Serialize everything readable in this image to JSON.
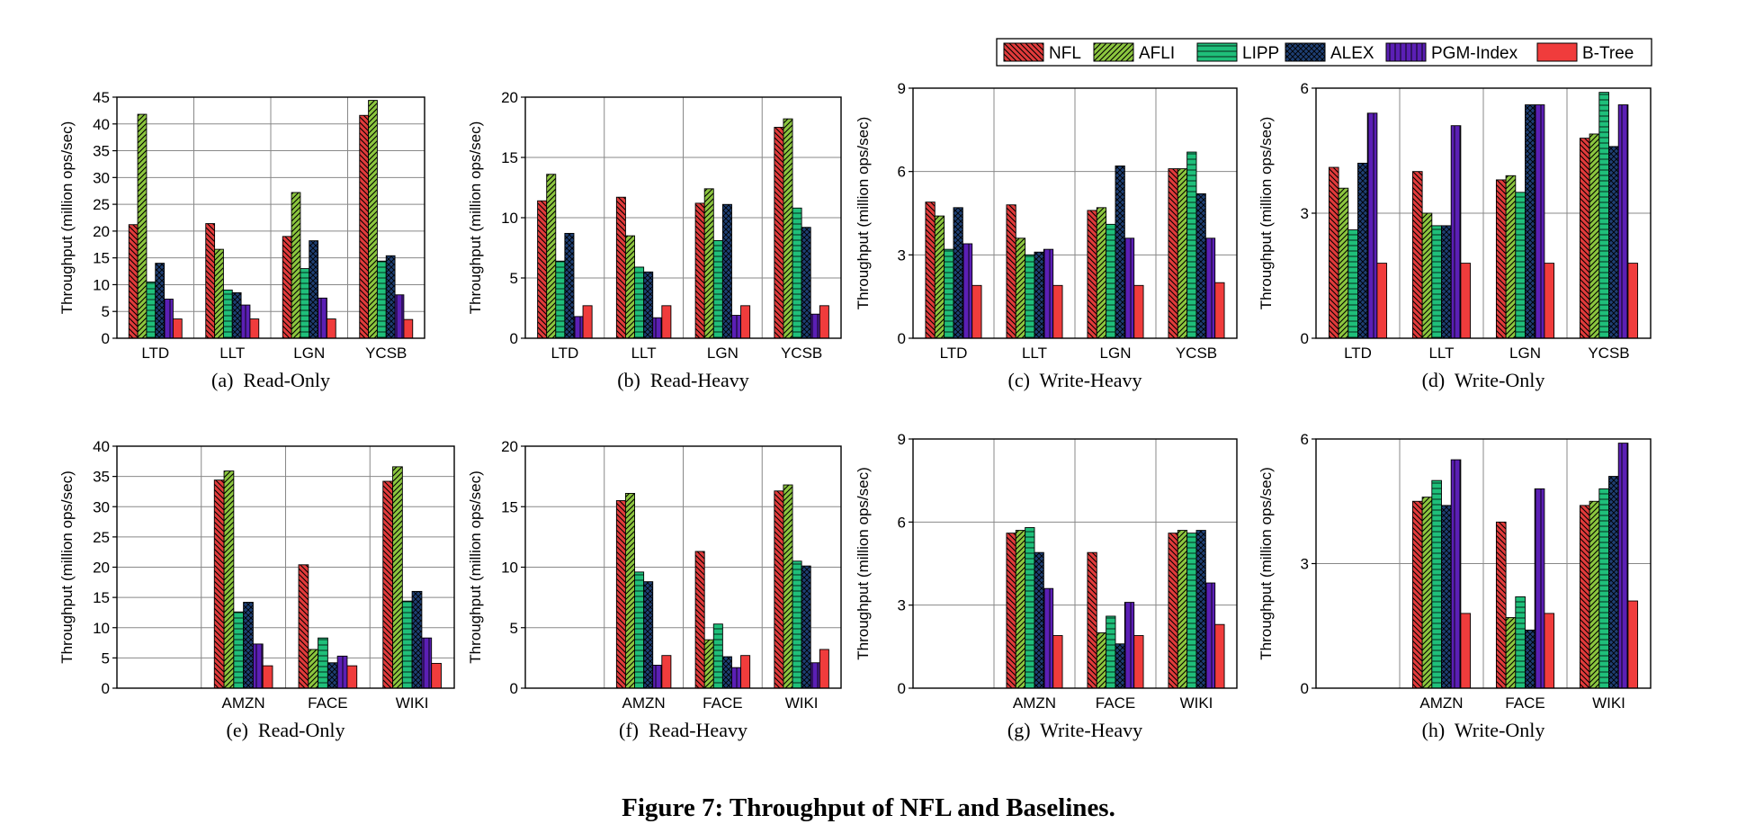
{
  "figure_caption": "Figure 7: Throughput of NFL and Baselines.",
  "legend": [
    {
      "name": "NFL",
      "color": "#e23b3b",
      "pattern": "diag-back"
    },
    {
      "name": "AFLI",
      "color": "#8cc63f",
      "pattern": "diag-fwd"
    },
    {
      "name": "LIPP",
      "color": "#1fbf7a",
      "pattern": "hlines"
    },
    {
      "name": "ALEX",
      "color": "#1e3f73",
      "pattern": "cross"
    },
    {
      "name": "PGM-Index",
      "color": "#5b1fb5",
      "pattern": "vlines"
    },
    {
      "name": "B-Tree",
      "color": "#f03c3c",
      "pattern": "solid"
    }
  ],
  "chart_data": [
    {
      "type": "bar",
      "caption": "(a)  Read-Only",
      "ylabel": "Throughput (million ops/sec)",
      "ylim": [
        0,
        45
      ],
      "yticks": [
        "0",
        "5",
        "10",
        "15",
        "20",
        "25",
        "30",
        "35",
        "40",
        "45"
      ],
      "categories": [
        "LTD",
        "LLT",
        "LGN",
        "YCSB"
      ],
      "grid": true,
      "series": [
        {
          "name": "NFL",
          "values": [
            21.2,
            21.4,
            19.0,
            41.6
          ]
        },
        {
          "name": "AFLI",
          "values": [
            41.8,
            16.6,
            27.2,
            44.4
          ]
        },
        {
          "name": "LIPP",
          "values": [
            10.5,
            9.0,
            13.0,
            14.4
          ]
        },
        {
          "name": "ALEX",
          "values": [
            14.0,
            8.5,
            18.2,
            15.4
          ]
        },
        {
          "name": "PGM-Index",
          "values": [
            7.3,
            6.2,
            7.5,
            8.1
          ]
        },
        {
          "name": "B-Tree",
          "values": [
            3.6,
            3.6,
            3.6,
            3.5
          ]
        }
      ]
    },
    {
      "type": "bar",
      "caption": "(b)  Read-Heavy",
      "ylabel": "Throughput (million ops/sec)",
      "ylim": [
        0,
        20
      ],
      "yticks": [
        "0",
        "5",
        "10",
        "15",
        "20"
      ],
      "categories": [
        "LTD",
        "LLT",
        "LGN",
        "YCSB"
      ],
      "grid": true,
      "series": [
        {
          "name": "NFL",
          "values": [
            11.4,
            11.7,
            11.2,
            17.5
          ]
        },
        {
          "name": "AFLI",
          "values": [
            13.6,
            8.5,
            12.4,
            18.2
          ]
        },
        {
          "name": "LIPP",
          "values": [
            6.4,
            5.9,
            8.1,
            10.8
          ]
        },
        {
          "name": "ALEX",
          "values": [
            8.7,
            5.5,
            11.1,
            9.2
          ]
        },
        {
          "name": "PGM-Index",
          "values": [
            1.8,
            1.7,
            1.9,
            2.0
          ]
        },
        {
          "name": "B-Tree",
          "values": [
            2.7,
            2.7,
            2.7,
            2.7
          ]
        }
      ]
    },
    {
      "type": "bar",
      "caption": "(c)  Write-Heavy",
      "ylabel": "Throughput (million ops/sec)",
      "ylim": [
        0,
        9
      ],
      "yticks": [
        "0",
        "3",
        "6",
        "9"
      ],
      "categories": [
        "LTD",
        "LLT",
        "LGN",
        "YCSB"
      ],
      "grid": true,
      "series": [
        {
          "name": "NFL",
          "values": [
            4.9,
            4.8,
            4.6,
            6.1
          ]
        },
        {
          "name": "AFLI",
          "values": [
            4.4,
            3.6,
            4.7,
            6.1
          ]
        },
        {
          "name": "LIPP",
          "values": [
            3.2,
            3.0,
            4.1,
            6.7
          ]
        },
        {
          "name": "ALEX",
          "values": [
            4.7,
            3.1,
            6.2,
            5.2
          ]
        },
        {
          "name": "PGM-Index",
          "values": [
            3.4,
            3.2,
            3.6,
            3.6
          ]
        },
        {
          "name": "B-Tree",
          "values": [
            1.9,
            1.9,
            1.9,
            2.0
          ]
        }
      ]
    },
    {
      "type": "bar",
      "caption": "(d)  Write-Only",
      "ylabel": "Throughput (million ops/sec)",
      "ylim": [
        0,
        6
      ],
      "yticks": [
        "0",
        "3",
        "6"
      ],
      "categories": [
        "LTD",
        "LLT",
        "LGN",
        "YCSB"
      ],
      "grid": true,
      "series": [
        {
          "name": "NFL",
          "values": [
            4.1,
            4.0,
            3.8,
            4.8
          ]
        },
        {
          "name": "AFLI",
          "values": [
            3.6,
            3.0,
            3.9,
            4.9
          ]
        },
        {
          "name": "LIPP",
          "values": [
            2.6,
            2.7,
            3.5,
            5.9
          ]
        },
        {
          "name": "ALEX",
          "values": [
            4.2,
            2.7,
            5.6,
            4.6
          ]
        },
        {
          "name": "PGM-Index",
          "values": [
            5.4,
            5.1,
            5.6,
            5.6
          ]
        },
        {
          "name": "B-Tree",
          "values": [
            1.8,
            1.8,
            1.8,
            1.8
          ]
        }
      ]
    },
    {
      "type": "bar",
      "caption": "(e)  Read-Only",
      "ylabel": "Throughput (million ops/sec)",
      "ylim": [
        0,
        40
      ],
      "yticks": [
        "0",
        "5",
        "10",
        "15",
        "20",
        "25",
        "30",
        "35",
        "40"
      ],
      "categories": [
        "AMZN",
        "FACE",
        "WIKI"
      ],
      "grid": true,
      "series": [
        {
          "name": "NFL",
          "values": [
            34.4,
            20.4,
            34.2
          ]
        },
        {
          "name": "AFLI",
          "values": [
            35.9,
            6.4,
            36.6
          ]
        },
        {
          "name": "LIPP",
          "values": [
            12.6,
            8.3,
            14.4
          ]
        },
        {
          "name": "ALEX",
          "values": [
            14.2,
            4.2,
            16.0
          ]
        },
        {
          "name": "PGM-Index",
          "values": [
            7.3,
            5.3,
            8.3
          ]
        },
        {
          "name": "B-Tree",
          "values": [
            3.7,
            3.7,
            4.1
          ]
        }
      ]
    },
    {
      "type": "bar",
      "caption": "(f)  Read-Heavy",
      "ylabel": "Throughput (million ops/sec)",
      "ylim": [
        0,
        20
      ],
      "yticks": [
        "0",
        "5",
        "10",
        "15",
        "20"
      ],
      "categories": [
        "AMZN",
        "FACE",
        "WIKI"
      ],
      "grid": true,
      "series": [
        {
          "name": "NFL",
          "values": [
            15.5,
            11.3,
            16.3
          ]
        },
        {
          "name": "AFLI",
          "values": [
            16.1,
            4.0,
            16.8
          ]
        },
        {
          "name": "LIPP",
          "values": [
            9.6,
            5.3,
            10.5
          ]
        },
        {
          "name": "ALEX",
          "values": [
            8.8,
            2.6,
            10.1
          ]
        },
        {
          "name": "PGM-Index",
          "values": [
            1.9,
            1.7,
            2.1
          ]
        },
        {
          "name": "B-Tree",
          "values": [
            2.7,
            2.7,
            3.2
          ]
        }
      ]
    },
    {
      "type": "bar",
      "caption": "(g)  Write-Heavy",
      "ylabel": "Throughput (million ops/sec)",
      "ylim": [
        0,
        9
      ],
      "yticks": [
        "0",
        "3",
        "6",
        "9"
      ],
      "categories": [
        "AMZN",
        "FACE",
        "WIKI"
      ],
      "grid": true,
      "series": [
        {
          "name": "NFL",
          "values": [
            5.6,
            4.9,
            5.6
          ]
        },
        {
          "name": "AFLI",
          "values": [
            5.7,
            2.0,
            5.7
          ]
        },
        {
          "name": "LIPP",
          "values": [
            5.8,
            2.6,
            5.6
          ]
        },
        {
          "name": "ALEX",
          "values": [
            4.9,
            1.6,
            5.7
          ]
        },
        {
          "name": "PGM-Index",
          "values": [
            3.6,
            3.1,
            3.8
          ]
        },
        {
          "name": "B-Tree",
          "values": [
            1.9,
            1.9,
            2.3
          ]
        }
      ]
    },
    {
      "type": "bar",
      "caption": "(h)  Write-Only",
      "ylabel": "Throughput (million ops/sec)",
      "ylim": [
        0,
        6
      ],
      "yticks": [
        "0",
        "3",
        "6"
      ],
      "categories": [
        "AMZN",
        "FACE",
        "WIKI"
      ],
      "grid": true,
      "series": [
        {
          "name": "NFL",
          "values": [
            4.5,
            4.0,
            4.4
          ]
        },
        {
          "name": "AFLI",
          "values": [
            4.6,
            1.7,
            4.5
          ]
        },
        {
          "name": "LIPP",
          "values": [
            5.0,
            2.2,
            4.8
          ]
        },
        {
          "name": "ALEX",
          "values": [
            4.4,
            1.4,
            5.1
          ]
        },
        {
          "name": "PGM-Index",
          "values": [
            5.5,
            4.8,
            5.9
          ]
        },
        {
          "name": "B-Tree",
          "values": [
            1.8,
            1.8,
            2.1
          ]
        }
      ]
    }
  ]
}
